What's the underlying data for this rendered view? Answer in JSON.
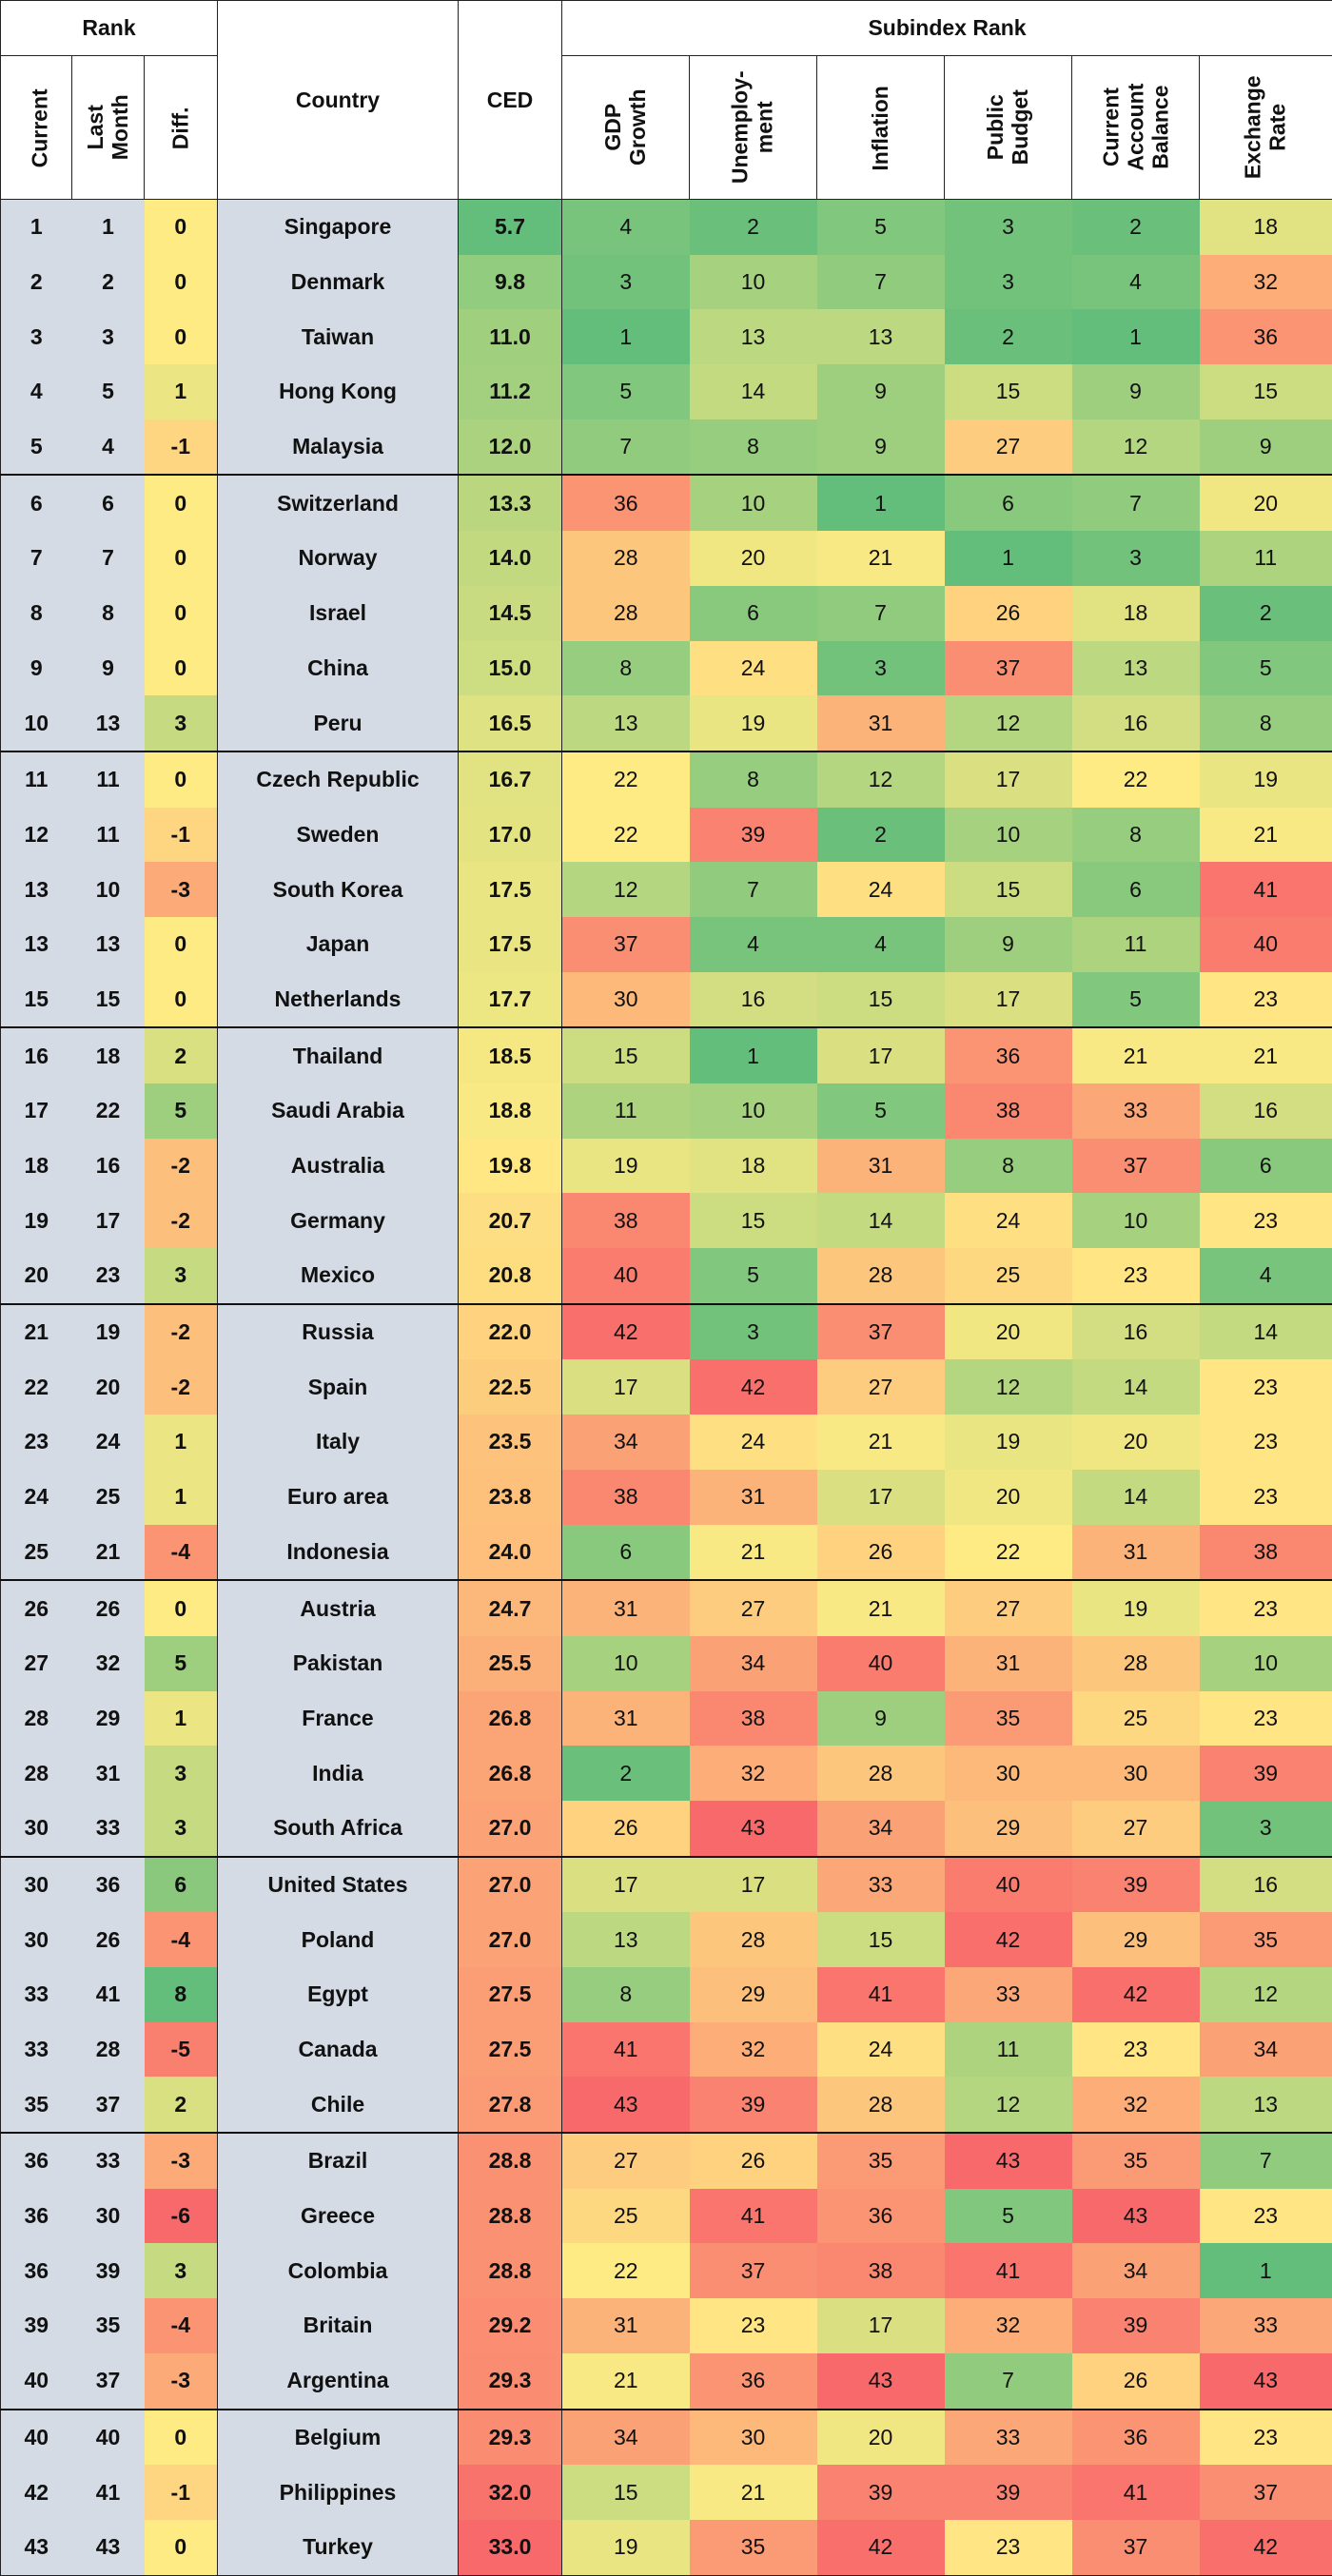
{
  "chart_data": {
    "type": "table",
    "header": {
      "rank_group": "Rank",
      "subindex_group": "Subindex Rank",
      "current": "Current",
      "last_month": "Last Month",
      "diff": "Diff.",
      "country": "Country",
      "ced": "CED",
      "subindices": [
        "GDP Growth",
        "Unemploy-\nment",
        "Inflation",
        "Public\nBudget",
        "Current\nAccount\nBalance",
        "Exchange\nRate"
      ]
    },
    "rows": [
      {
        "current": "1",
        "last": "1",
        "diff": "0",
        "country": "Singapore",
        "ced": "5.7",
        "sub": [
          4,
          2,
          5,
          3,
          2,
          18
        ]
      },
      {
        "current": "2",
        "last": "2",
        "diff": "0",
        "country": "Denmark",
        "ced": "9.8",
        "sub": [
          3,
          10,
          7,
          3,
          4,
          32
        ]
      },
      {
        "current": "3",
        "last": "3",
        "diff": "0",
        "country": "Taiwan",
        "ced": "11.0",
        "sub": [
          1,
          13,
          13,
          2,
          1,
          36
        ]
      },
      {
        "current": "4",
        "last": "5",
        "diff": "1",
        "country": "Hong Kong",
        "ced": "11.2",
        "sub": [
          5,
          14,
          9,
          15,
          9,
          15
        ]
      },
      {
        "current": "5",
        "last": "4",
        "diff": "-1",
        "country": "Malaysia",
        "ced": "12.0",
        "sub": [
          7,
          8,
          9,
          27,
          12,
          9
        ]
      },
      {
        "current": "6",
        "last": "6",
        "diff": "0",
        "country": "Switzerland",
        "ced": "13.3",
        "sub": [
          36,
          10,
          1,
          6,
          7,
          20
        ]
      },
      {
        "current": "7",
        "last": "7",
        "diff": "0",
        "country": "Norway",
        "ced": "14.0",
        "sub": [
          28,
          20,
          21,
          1,
          3,
          11
        ]
      },
      {
        "current": "8",
        "last": "8",
        "diff": "0",
        "country": "Israel",
        "ced": "14.5",
        "sub": [
          28,
          6,
          7,
          26,
          18,
          2
        ]
      },
      {
        "current": "9",
        "last": "9",
        "diff": "0",
        "country": "China",
        "ced": "15.0",
        "sub": [
          8,
          24,
          3,
          37,
          13,
          5
        ]
      },
      {
        "current": "10",
        "last": "13",
        "diff": "3",
        "country": "Peru",
        "ced": "16.5",
        "sub": [
          13,
          19,
          31,
          12,
          16,
          8
        ]
      },
      {
        "current": "11",
        "last": "11",
        "diff": "0",
        "country": "Czech Republic",
        "ced": "16.7",
        "sub": [
          22,
          8,
          12,
          17,
          22,
          19
        ]
      },
      {
        "current": "12",
        "last": "11",
        "diff": "-1",
        "country": "Sweden",
        "ced": "17.0",
        "sub": [
          22,
          39,
          2,
          10,
          8,
          21
        ]
      },
      {
        "current": "13",
        "last": "10",
        "diff": "-3",
        "country": "South Korea",
        "ced": "17.5",
        "sub": [
          12,
          7,
          24,
          15,
          6,
          41
        ]
      },
      {
        "current": "13",
        "last": "13",
        "diff": "0",
        "country": "Japan",
        "ced": "17.5",
        "sub": [
          37,
          4,
          4,
          9,
          11,
          40
        ]
      },
      {
        "current": "15",
        "last": "15",
        "diff": "0",
        "country": "Netherlands",
        "ced": "17.7",
        "sub": [
          30,
          16,
          15,
          17,
          5,
          23
        ]
      },
      {
        "current": "16",
        "last": "18",
        "diff": "2",
        "country": "Thailand",
        "ced": "18.5",
        "sub": [
          15,
          1,
          17,
          36,
          21,
          21
        ]
      },
      {
        "current": "17",
        "last": "22",
        "diff": "5",
        "country": "Saudi Arabia",
        "ced": "18.8",
        "sub": [
          11,
          10,
          5,
          38,
          33,
          16
        ]
      },
      {
        "current": "18",
        "last": "16",
        "diff": "-2",
        "country": "Australia",
        "ced": "19.8",
        "sub": [
          19,
          18,
          31,
          8,
          37,
          6
        ]
      },
      {
        "current": "19",
        "last": "17",
        "diff": "-2",
        "country": "Germany",
        "ced": "20.7",
        "sub": [
          38,
          15,
          14,
          24,
          10,
          23
        ]
      },
      {
        "current": "20",
        "last": "23",
        "diff": "3",
        "country": "Mexico",
        "ced": "20.8",
        "sub": [
          40,
          5,
          28,
          25,
          23,
          4
        ]
      },
      {
        "current": "21",
        "last": "19",
        "diff": "-2",
        "country": "Russia",
        "ced": "22.0",
        "sub": [
          42,
          3,
          37,
          20,
          16,
          14
        ]
      },
      {
        "current": "22",
        "last": "20",
        "diff": "-2",
        "country": "Spain",
        "ced": "22.5",
        "sub": [
          17,
          42,
          27,
          12,
          14,
          23
        ]
      },
      {
        "current": "23",
        "last": "24",
        "diff": "1",
        "country": "Italy",
        "ced": "23.5",
        "sub": [
          34,
          24,
          21,
          19,
          20,
          23
        ]
      },
      {
        "current": "24",
        "last": "25",
        "diff": "1",
        "country": "Euro area",
        "ced": "23.8",
        "sub": [
          38,
          31,
          17,
          20,
          14,
          23
        ]
      },
      {
        "current": "25",
        "last": "21",
        "diff": "-4",
        "country": "Indonesia",
        "ced": "24.0",
        "sub": [
          6,
          21,
          26,
          22,
          31,
          38
        ]
      },
      {
        "current": "26",
        "last": "26",
        "diff": "0",
        "country": "Austria",
        "ced": "24.7",
        "sub": [
          31,
          27,
          21,
          27,
          19,
          23
        ]
      },
      {
        "current": "27",
        "last": "32",
        "diff": "5",
        "country": "Pakistan",
        "ced": "25.5",
        "sub": [
          10,
          34,
          40,
          31,
          28,
          10
        ]
      },
      {
        "current": "28",
        "last": "29",
        "diff": "1",
        "country": "France",
        "ced": "26.8",
        "sub": [
          31,
          38,
          9,
          35,
          25,
          23
        ]
      },
      {
        "current": "28",
        "last": "31",
        "diff": "3",
        "country": "India",
        "ced": "26.8",
        "sub": [
          2,
          32,
          28,
          30,
          30,
          39
        ]
      },
      {
        "current": "30",
        "last": "33",
        "diff": "3",
        "country": "South Africa",
        "ced": "27.0",
        "sub": [
          26,
          43,
          34,
          29,
          27,
          3
        ]
      },
      {
        "current": "30",
        "last": "36",
        "diff": "6",
        "country": "United States",
        "ced": "27.0",
        "sub": [
          17,
          17,
          33,
          40,
          39,
          16
        ]
      },
      {
        "current": "30",
        "last": "26",
        "diff": "-4",
        "country": "Poland",
        "ced": "27.0",
        "sub": [
          13,
          28,
          15,
          42,
          29,
          35
        ]
      },
      {
        "current": "33",
        "last": "41",
        "diff": "8",
        "country": "Egypt",
        "ced": "27.5",
        "sub": [
          8,
          29,
          41,
          33,
          42,
          12
        ]
      },
      {
        "current": "33",
        "last": "28",
        "diff": "-5",
        "country": "Canada",
        "ced": "27.5",
        "sub": [
          41,
          32,
          24,
          11,
          23,
          34
        ]
      },
      {
        "current": "35",
        "last": "37",
        "diff": "2",
        "country": "Chile",
        "ced": "27.8",
        "sub": [
          43,
          39,
          28,
          12,
          32,
          13
        ]
      },
      {
        "current": "36",
        "last": "33",
        "diff": "-3",
        "country": "Brazil",
        "ced": "28.8",
        "sub": [
          27,
          26,
          35,
          43,
          35,
          7
        ]
      },
      {
        "current": "36",
        "last": "30",
        "diff": "-6",
        "country": "Greece",
        "ced": "28.8",
        "sub": [
          25,
          41,
          36,
          5,
          43,
          23
        ]
      },
      {
        "current": "36",
        "last": "39",
        "diff": "3",
        "country": "Colombia",
        "ced": "28.8",
        "sub": [
          22,
          37,
          38,
          41,
          34,
          1
        ]
      },
      {
        "current": "39",
        "last": "35",
        "diff": "-4",
        "country": "Britain",
        "ced": "29.2",
        "sub": [
          31,
          23,
          17,
          32,
          39,
          33
        ]
      },
      {
        "current": "40",
        "last": "37",
        "diff": "-3",
        "country": "Argentina",
        "ced": "29.3",
        "sub": [
          21,
          36,
          43,
          7,
          26,
          43
        ]
      },
      {
        "current": "40",
        "last": "40",
        "diff": "0",
        "country": "Belgium",
        "ced": "29.3",
        "sub": [
          34,
          30,
          20,
          33,
          36,
          23
        ]
      },
      {
        "current": "42",
        "last": "41",
        "diff": "-1",
        "country": "Philippines",
        "ced": "32.0",
        "sub": [
          15,
          21,
          39,
          39,
          41,
          37
        ]
      },
      {
        "current": "43",
        "last": "43",
        "diff": "0",
        "country": "Turkey",
        "ced": "33.0",
        "sub": [
          19,
          35,
          42,
          23,
          37,
          42
        ]
      }
    ],
    "scale": {
      "low_color": "#63be7b",
      "mid_color": "#ffeb84",
      "high_color": "#f8696b",
      "sub_range": [
        1,
        43
      ],
      "ced_range": [
        5.7,
        33.0
      ],
      "diff_range": [
        -6,
        8
      ]
    }
  }
}
